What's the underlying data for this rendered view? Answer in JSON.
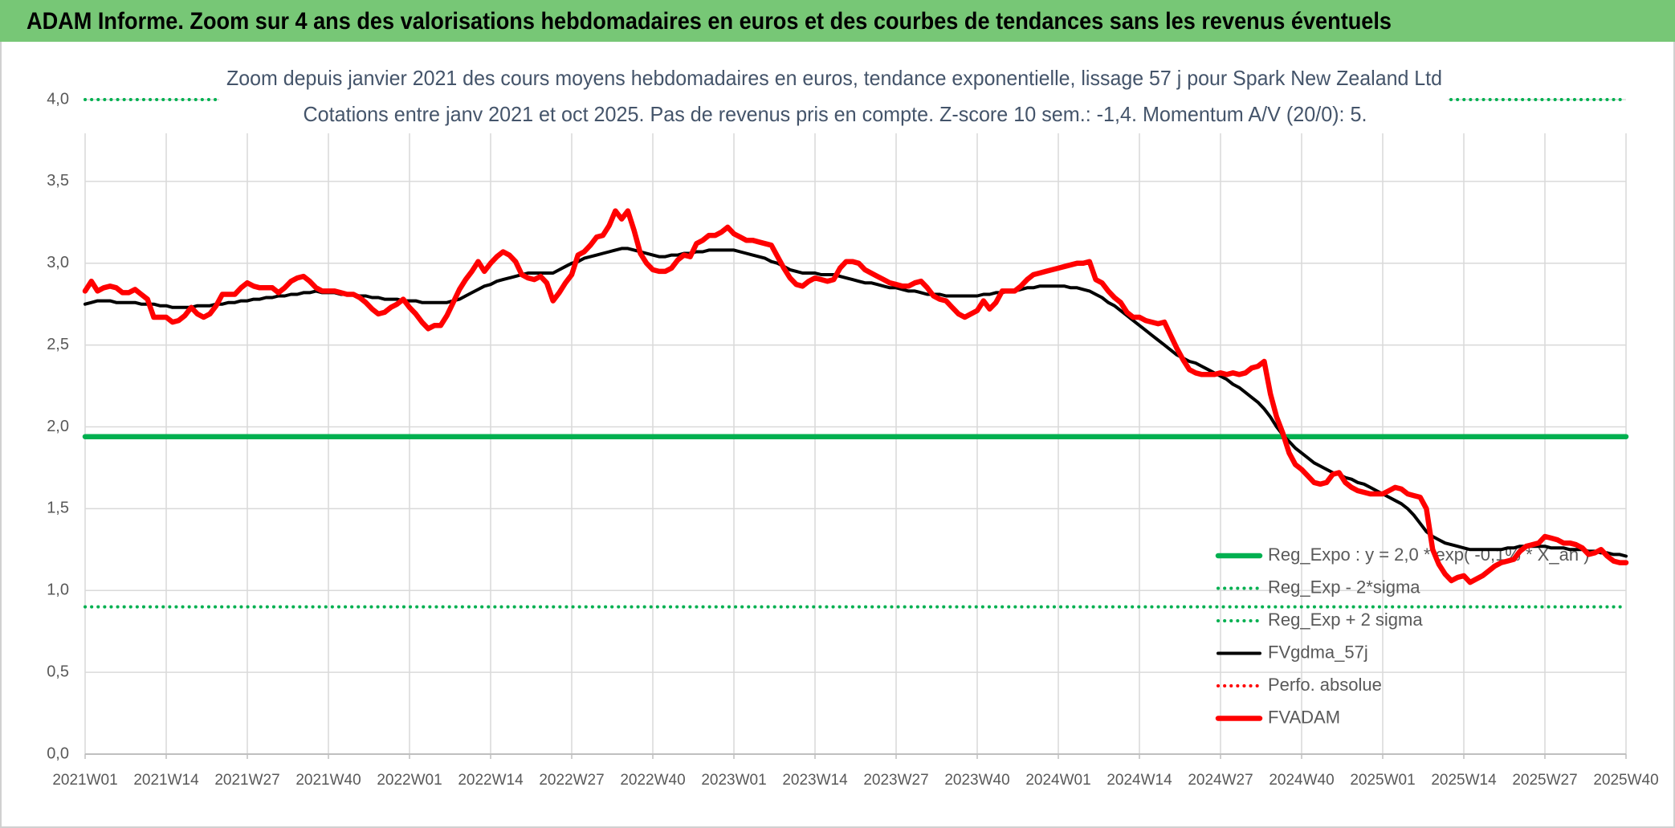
{
  "header": {
    "title": "ADAM Informe. Zoom sur 4 ans des valorisations hebdomadaires en euros et des courbes de tendances sans les revenus éventuels"
  },
  "chart_data": {
    "type": "line",
    "title": "Zoom depuis janvier 2021 des cours moyens hebdomadaires en euros, tendance exponentielle, lissage 57 j pour Spark New Zealand Ltd",
    "subtitle": "Cotations entre janv 2021 et oct 2025. Pas de revenus pris en compte. Z-score 10 sem.: -1,4. Momentum A/V (20/0): 5.",
    "categories": [
      "2021W01",
      null,
      null,
      null,
      null,
      null,
      null,
      null,
      null,
      null,
      null,
      null,
      null,
      "2021W14",
      null,
      null,
      null,
      null,
      null,
      null,
      null,
      null,
      null,
      null,
      null,
      null,
      "2021W27",
      null,
      null,
      null,
      null,
      null,
      null,
      null,
      null,
      null,
      null,
      null,
      null,
      "2021W40",
      null,
      null,
      null,
      null,
      null,
      null,
      null,
      null,
      null,
      null,
      null,
      null,
      "2022W01",
      null,
      null,
      null,
      null,
      null,
      null,
      null,
      null,
      null,
      null,
      null,
      null,
      "2022W14",
      null,
      null,
      null,
      null,
      null,
      null,
      null,
      null,
      null,
      null,
      null,
      null,
      "2022W27",
      null,
      null,
      null,
      null,
      null,
      null,
      null,
      null,
      null,
      null,
      null,
      null,
      "2022W40",
      null,
      null,
      null,
      null,
      null,
      null,
      null,
      null,
      null,
      null,
      null,
      null,
      "2023W01",
      null,
      null,
      null,
      null,
      null,
      null,
      null,
      null,
      null,
      null,
      null,
      null,
      "2023W14",
      null,
      null,
      null,
      null,
      null,
      null,
      null,
      null,
      null,
      null,
      null,
      null,
      "2023W27",
      null,
      null,
      null,
      null,
      null,
      null,
      null,
      null,
      null,
      null,
      null,
      null,
      "2023W40",
      null,
      null,
      null,
      null,
      null,
      null,
      null,
      null,
      null,
      null,
      null,
      null,
      "2024W01",
      null,
      null,
      null,
      null,
      null,
      null,
      null,
      null,
      null,
      null,
      null,
      null,
      "2024W14",
      null,
      null,
      null,
      null,
      null,
      null,
      null,
      null,
      null,
      null,
      null,
      null,
      "2024W27",
      null,
      null,
      null,
      null,
      null,
      null,
      null,
      null,
      null,
      null,
      null,
      null,
      "2024W40",
      null,
      null,
      null,
      null,
      null,
      null,
      null,
      null,
      null,
      null,
      null,
      null,
      "2025W01",
      null,
      null,
      null,
      null,
      null,
      null,
      null,
      null,
      null,
      null,
      null,
      null,
      "2025W14",
      null,
      null,
      null,
      null,
      null,
      null,
      null,
      null,
      null,
      null,
      null,
      null,
      "2025W27",
      null,
      null,
      null,
      null,
      null,
      null,
      null,
      null,
      null,
      null,
      null,
      null,
      "2025W40"
    ],
    "ylim": [
      0,
      4
    ],
    "yticks": [
      {
        "value": 0,
        "label": "0,0"
      },
      {
        "value": 0.5,
        "label": "0,5"
      },
      {
        "value": 1,
        "label": "1,0"
      },
      {
        "value": 1.5,
        "label": "1,5"
      },
      {
        "value": 2,
        "label": "2,0"
      },
      {
        "value": 2.5,
        "label": "2,5"
      },
      {
        "value": 3,
        "label": "3,0"
      },
      {
        "value": 3.5,
        "label": "3,5"
      },
      {
        "value": 4,
        "label": "4,0"
      }
    ],
    "grid": true,
    "legend": "bottom-right",
    "series": [
      {
        "name": "Reg_Expo : y = 2,0 * exp( -0,1% * X_an )",
        "color": "#00b050",
        "style": "solid",
        "value": 1.94
      },
      {
        "name": "Reg_Exp - 2*sigma",
        "color": "#00b050",
        "style": "dotted",
        "value": 0.9
      },
      {
        "name": "Reg_Exp + 2 sigma",
        "color": "#00b050",
        "style": "dotted",
        "value": 4.0
      },
      {
        "name": "FVgdma_57j",
        "color": "#000000",
        "style": "thin",
        "values": [
          2.75,
          2.76,
          2.77,
          2.77,
          2.77,
          2.76,
          2.76,
          2.76,
          2.76,
          2.75,
          2.75,
          2.75,
          2.74,
          2.74,
          2.73,
          2.73,
          2.73,
          2.73,
          2.74,
          2.74,
          2.74,
          2.75,
          2.75,
          2.76,
          2.76,
          2.77,
          2.77,
          2.78,
          2.78,
          2.79,
          2.79,
          2.8,
          2.8,
          2.81,
          2.81,
          2.82,
          2.82,
          2.83,
          2.82,
          2.82,
          2.82,
          2.81,
          2.81,
          2.81,
          2.8,
          2.8,
          2.79,
          2.79,
          2.78,
          2.78,
          2.78,
          2.77,
          2.77,
          2.77,
          2.76,
          2.76,
          2.76,
          2.76,
          2.76,
          2.77,
          2.78,
          2.8,
          2.82,
          2.84,
          2.86,
          2.87,
          2.89,
          2.9,
          2.91,
          2.92,
          2.93,
          2.94,
          2.94,
          2.94,
          2.94,
          2.94,
          2.96,
          2.98,
          3.0,
          3.01,
          3.03,
          3.04,
          3.05,
          3.06,
          3.07,
          3.08,
          3.09,
          3.09,
          3.08,
          3.07,
          3.06,
          3.05,
          3.04,
          3.04,
          3.05,
          3.05,
          3.06,
          3.06,
          3.07,
          3.07,
          3.08,
          3.08,
          3.08,
          3.08,
          3.08,
          3.07,
          3.06,
          3.05,
          3.04,
          3.03,
          3.01,
          3.0,
          2.98,
          2.96,
          2.95,
          2.94,
          2.94,
          2.94,
          2.93,
          2.93,
          2.93,
          2.92,
          2.91,
          2.9,
          2.89,
          2.88,
          2.88,
          2.87,
          2.86,
          2.85,
          2.85,
          2.84,
          2.83,
          2.83,
          2.82,
          2.81,
          2.81,
          2.81,
          2.8,
          2.8,
          2.8,
          2.8,
          2.8,
          2.8,
          2.81,
          2.81,
          2.82,
          2.82,
          2.83,
          2.83,
          2.84,
          2.85,
          2.85,
          2.86,
          2.86,
          2.86,
          2.86,
          2.86,
          2.85,
          2.85,
          2.84,
          2.83,
          2.81,
          2.79,
          2.76,
          2.74,
          2.71,
          2.68,
          2.65,
          2.62,
          2.59,
          2.56,
          2.53,
          2.5,
          2.47,
          2.44,
          2.42,
          2.4,
          2.39,
          2.37,
          2.35,
          2.33,
          2.31,
          2.29,
          2.26,
          2.24,
          2.21,
          2.18,
          2.15,
          2.11,
          2.06,
          2.0,
          1.95,
          1.91,
          1.87,
          1.84,
          1.81,
          1.78,
          1.76,
          1.74,
          1.72,
          1.71,
          1.69,
          1.68,
          1.66,
          1.65,
          1.63,
          1.61,
          1.59,
          1.57,
          1.55,
          1.53,
          1.5,
          1.46,
          1.41,
          1.36,
          1.33,
          1.31,
          1.29,
          1.28,
          1.27,
          1.26,
          1.25,
          1.25,
          1.25,
          1.25,
          1.25,
          1.25,
          1.26,
          1.26,
          1.27,
          1.27,
          1.27,
          1.27,
          1.27,
          1.26,
          1.26,
          1.26,
          1.25,
          1.25,
          1.25,
          1.24,
          1.24,
          1.23,
          1.23,
          1.22,
          1.22,
          1.21
        ]
      },
      {
        "name": "Perfo. absolue",
        "color": "#ff0000",
        "style": "dotted",
        "value": null
      },
      {
        "name": "FVADAM",
        "color": "#ff0000",
        "style": "solid",
        "values": [
          2.83,
          2.89,
          2.83,
          2.85,
          2.86,
          2.85,
          2.82,
          2.82,
          2.84,
          2.81,
          2.78,
          2.67,
          2.67,
          2.67,
          2.64,
          2.65,
          2.68,
          2.73,
          2.69,
          2.67,
          2.69,
          2.74,
          2.81,
          2.81,
          2.81,
          2.85,
          2.88,
          2.86,
          2.85,
          2.85,
          2.85,
          2.82,
          2.85,
          2.89,
          2.91,
          2.92,
          2.89,
          2.85,
          2.83,
          2.83,
          2.83,
          2.82,
          2.81,
          2.81,
          2.79,
          2.76,
          2.72,
          2.69,
          2.7,
          2.73,
          2.75,
          2.78,
          2.73,
          2.69,
          2.64,
          2.6,
          2.62,
          2.62,
          2.68,
          2.76,
          2.84,
          2.9,
          2.95,
          3.01,
          2.95,
          3.0,
          3.04,
          3.07,
          3.05,
          3.01,
          2.93,
          2.91,
          2.9,
          2.92,
          2.88,
          2.77,
          2.82,
          2.88,
          2.93,
          3.05,
          3.07,
          3.11,
          3.16,
          3.17,
          3.23,
          3.32,
          3.27,
          3.32,
          3.2,
          3.06,
          3.0,
          2.96,
          2.95,
          2.95,
          2.97,
          3.02,
          3.05,
          3.04,
          3.12,
          3.14,
          3.17,
          3.17,
          3.19,
          3.22,
          3.18,
          3.16,
          3.14,
          3.14,
          3.13,
          3.12,
          3.11,
          3.04,
          2.97,
          2.91,
          2.87,
          2.86,
          2.89,
          2.91,
          2.9,
          2.89,
          2.9,
          2.97,
          3.01,
          3.01,
          3.0,
          2.96,
          2.94,
          2.92,
          2.9,
          2.88,
          2.87,
          2.86,
          2.86,
          2.88,
          2.89,
          2.85,
          2.8,
          2.78,
          2.77,
          2.73,
          2.69,
          2.67,
          2.69,
          2.71,
          2.77,
          2.72,
          2.76,
          2.83,
          2.83,
          2.83,
          2.86,
          2.9,
          2.93,
          2.94,
          2.95,
          2.96,
          2.97,
          2.98,
          2.99,
          3.0,
          3.0,
          3.01,
          2.9,
          2.88,
          2.83,
          2.79,
          2.76,
          2.7,
          2.67,
          2.67,
          2.65,
          2.64,
          2.63,
          2.64,
          2.56,
          2.48,
          2.41,
          2.35,
          2.33,
          2.32,
          2.32,
          2.32,
          2.33,
          2.32,
          2.33,
          2.32,
          2.33,
          2.36,
          2.37,
          2.4,
          2.2,
          2.06,
          1.96,
          1.84,
          1.77,
          1.74,
          1.7,
          1.66,
          1.65,
          1.66,
          1.71,
          1.72,
          1.66,
          1.63,
          1.61,
          1.6,
          1.59,
          1.59,
          1.59,
          1.61,
          1.63,
          1.62,
          1.59,
          1.58,
          1.57,
          1.5,
          1.25,
          1.16,
          1.1,
          1.06,
          1.08,
          1.09,
          1.05,
          1.07,
          1.09,
          1.12,
          1.15,
          1.17,
          1.18,
          1.19,
          1.24,
          1.27,
          1.28,
          1.29,
          1.33,
          1.32,
          1.31,
          1.29,
          1.29,
          1.28,
          1.26,
          1.22,
          1.23,
          1.25,
          1.21,
          1.18,
          1.17,
          1.17
        ]
      }
    ]
  }
}
